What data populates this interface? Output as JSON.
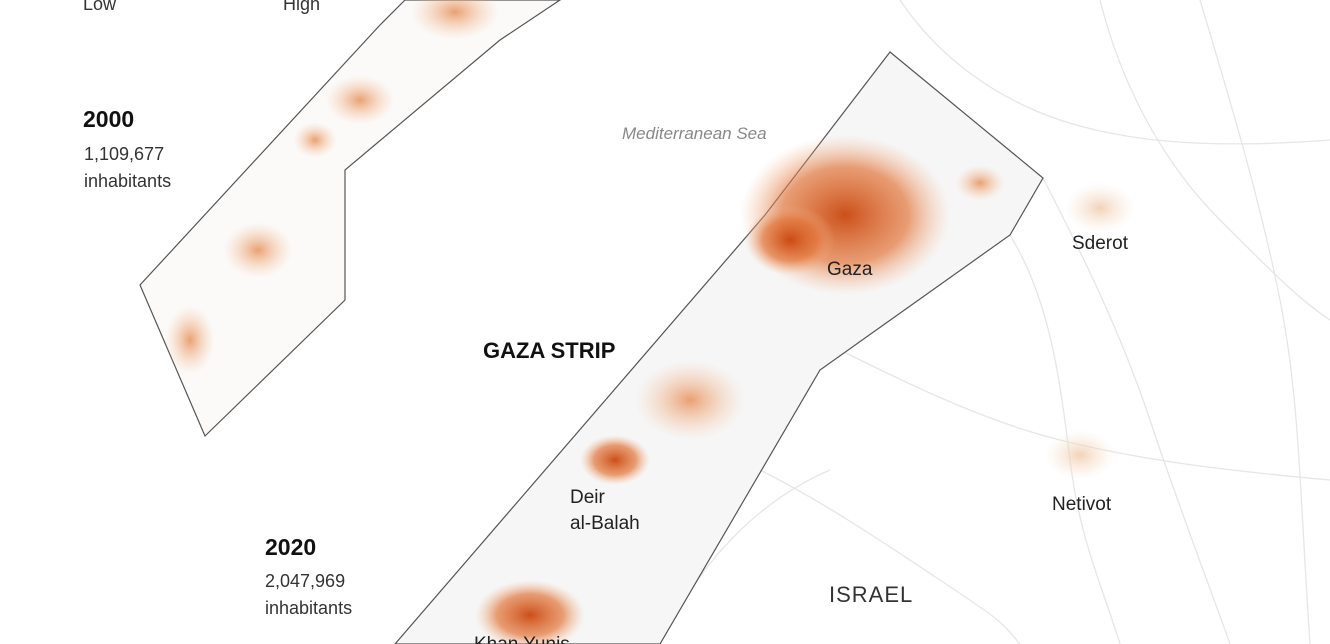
{
  "legend": {
    "low": "Low",
    "high": "High"
  },
  "panels": [
    {
      "year": "2000",
      "population": "1,109,677",
      "unit": "inhabitants"
    },
    {
      "year": "2020",
      "population": "2,047,969",
      "unit": "inhabitants"
    }
  ],
  "labels": {
    "sea": "Mediterranean Sea",
    "region": "GAZA STRIP",
    "country": "ISRAEL"
  },
  "places": [
    {
      "lines": [
        "Gaza"
      ]
    },
    {
      "lines": [
        "Sderot"
      ]
    },
    {
      "lines": [
        "Deir",
        "al-Balah"
      ]
    },
    {
      "lines": [
        "Netivot"
      ]
    },
    {
      "lines": [
        "Khan Yunis"
      ]
    }
  ]
}
